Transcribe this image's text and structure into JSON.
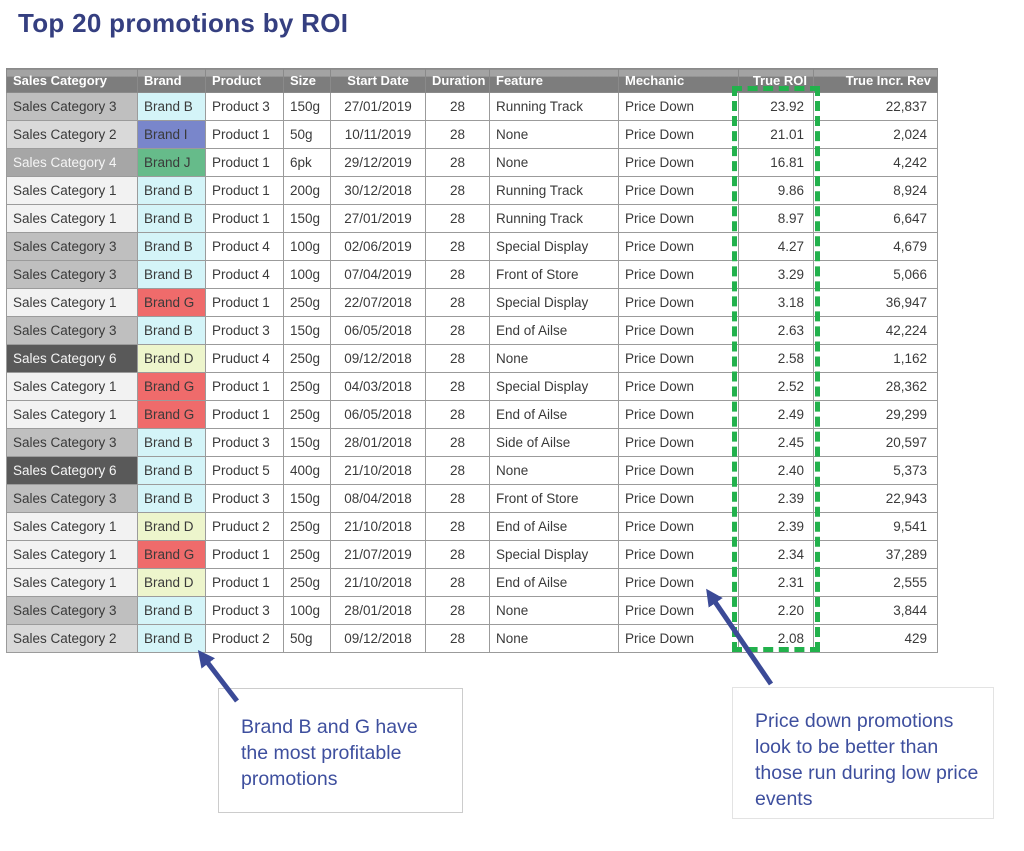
{
  "title": "Top 20 promotions by ROI",
  "chart_data": {
    "type": "table",
    "title": "Top 20 promotions by ROI",
    "columns": [
      "Sales Category",
      "Brand",
      "Product",
      "Size",
      "Start Date",
      "Duration",
      "Feature",
      "Mechanic",
      "True ROI",
      "True Incr. Rev"
    ],
    "rows": [
      [
        "Sales Category 3",
        "Brand B",
        "Product 3",
        "150g",
        "27/01/2019",
        "28",
        "Running Track",
        "Price Down",
        "23.92",
        "22,837"
      ],
      [
        "Sales Category 2",
        "Brand I",
        "Product 1",
        "50g",
        "10/11/2019",
        "28",
        "None",
        "Price Down",
        "21.01",
        "2,024"
      ],
      [
        "Sales Category 4",
        "Brand J",
        "Product 1",
        "6pk",
        "29/12/2019",
        "28",
        "None",
        "Price Down",
        "16.81",
        "4,242"
      ],
      [
        "Sales Category 1",
        "Brand B",
        "Product 1",
        "200g",
        "30/12/2018",
        "28",
        "Running Track",
        "Price Down",
        "9.86",
        "8,924"
      ],
      [
        "Sales Category 1",
        "Brand B",
        "Product 1",
        "150g",
        "27/01/2019",
        "28",
        "Running Track",
        "Price Down",
        "8.97",
        "6,647"
      ],
      [
        "Sales Category 3",
        "Brand B",
        "Product 4",
        "100g",
        "02/06/2019",
        "28",
        "Special Display",
        "Price Down",
        "4.27",
        "4,679"
      ],
      [
        "Sales Category 3",
        "Brand B",
        "Product 4",
        "100g",
        "07/04/2019",
        "28",
        "Front of Store",
        "Price Down",
        "3.29",
        "5,066"
      ],
      [
        "Sales Category 1",
        "Brand G",
        "Product 1",
        "250g",
        "22/07/2018",
        "28",
        "Special Display",
        "Price Down",
        "3.18",
        "36,947"
      ],
      [
        "Sales Category 3",
        "Brand B",
        "Product 3",
        "150g",
        "06/05/2018",
        "28",
        "End of Ailse",
        "Price Down",
        "2.63",
        "42,224"
      ],
      [
        "Sales Category 6",
        "Brand D",
        "Pruduct 4",
        "250g",
        "09/12/2018",
        "28",
        "None",
        "Price Down",
        "2.58",
        "1,162"
      ],
      [
        "Sales Category 1",
        "Brand G",
        "Product 1",
        "250g",
        "04/03/2018",
        "28",
        "Special Display",
        "Price Down",
        "2.52",
        "28,362"
      ],
      [
        "Sales Category 1",
        "Brand G",
        "Product 1",
        "250g",
        "06/05/2018",
        "28",
        "End of Ailse",
        "Price Down",
        "2.49",
        "29,299"
      ],
      [
        "Sales Category 3",
        "Brand B",
        "Product 3",
        "150g",
        "28/01/2018",
        "28",
        "Side of Ailse",
        "Price Down",
        "2.45",
        "20,597"
      ],
      [
        "Sales Category 6",
        "Brand B",
        "Product 5",
        "400g",
        "21/10/2018",
        "28",
        "None",
        "Price Down",
        "2.40",
        "5,373"
      ],
      [
        "Sales Category 3",
        "Brand B",
        "Product 3",
        "150g",
        "08/04/2018",
        "28",
        "Front of Store",
        "Price Down",
        "2.39",
        "22,943"
      ],
      [
        "Sales Category 1",
        "Brand D",
        "Pruduct 2",
        "250g",
        "21/10/2018",
        "28",
        "End of Ailse",
        "Price Down",
        "2.39",
        "9,541"
      ],
      [
        "Sales Category 1",
        "Brand G",
        "Product 1",
        "250g",
        "21/07/2019",
        "28",
        "Special Display",
        "Price Down",
        "2.34",
        "37,289"
      ],
      [
        "Sales Category 1",
        "Brand D",
        "Product 1",
        "250g",
        "21/10/2018",
        "28",
        "End of Ailse",
        "Price Down",
        "2.31",
        "2,555"
      ],
      [
        "Sales Category 3",
        "Brand B",
        "Product 3",
        "100g",
        "28/01/2018",
        "28",
        "None",
        "Price Down",
        "2.20",
        "3,844"
      ],
      [
        "Sales Category 2",
        "Brand B",
        "Product 2",
        "50g",
        "09/12/2018",
        "28",
        "None",
        "Price Down",
        "2.08",
        "429"
      ]
    ]
  },
  "highlight": {
    "column": "True ROI",
    "style": "green-dashed-rectangle",
    "color": "#22b14c"
  },
  "callouts": {
    "left": "Brand B and G have the most profitable promotions",
    "right": "Price down promotions look to be better than those run during low price events"
  },
  "colors": {
    "title_text": "#353f80",
    "header_bg": "#7d7d7d",
    "header_text": "#ffffff",
    "grid_line": "#9b9b9b",
    "cell_text": "#3a3a3a",
    "annotation_text": "#3e4f9e",
    "arrow": "#3b4a97",
    "highlight_green": "#22b14c",
    "category_bg": {
      "Sales Category 1": "#f2f2f2",
      "Sales Category 2": "#d9d9d9",
      "Sales Category 3": "#bfbfbf",
      "Sales Category 4": "#a6a6a6",
      "Sales Category 6": "#595959"
    },
    "category_light_text": [
      "Sales Category 4",
      "Sales Category 6"
    ],
    "brand_bg": {
      "Brand B": "#d4f4f8",
      "Brand I": "#7986cb",
      "Brand J": "#66bb8a",
      "Brand G": "#ef6b6b",
      "Brand D": "#edf5cc"
    }
  }
}
